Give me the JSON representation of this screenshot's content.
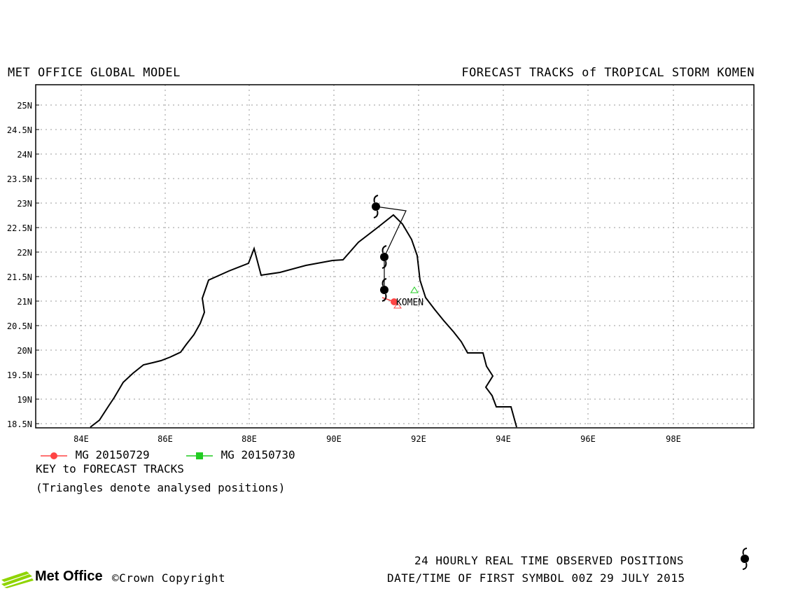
{
  "header": {
    "left_title": "MET OFFICE GLOBAL MODEL",
    "right_title": "FORECAST TRACKS of TROPICAL STORM KOMEN"
  },
  "map": {
    "lon_ticks": [
      "84E",
      "86E",
      "88E",
      "90E",
      "92E",
      "94E",
      "96E",
      "98E"
    ],
    "lat_ticks": [
      "25N",
      "24.5N",
      "24N",
      "23.5N",
      "23N",
      "22.5N",
      "22N",
      "21.5N",
      "21N",
      "20.5N",
      "20N",
      "19.5N",
      "19N",
      "18.5N"
    ],
    "storm_label": "KOMEN",
    "colors": {
      "track_red": "#ff4444",
      "track_green": "#22cc22",
      "observed": "#000000",
      "grid": "#999999"
    }
  },
  "legend": {
    "items": [
      {
        "label": "MG 20150729",
        "color": "#ff4444",
        "marker": "circle"
      },
      {
        "label": "MG 20150730",
        "color": "#22cc22",
        "marker": "square"
      }
    ],
    "key_title": "KEY to FORECAST TRACKS",
    "key_note": "(Triangles denote analysed positions)"
  },
  "footer": {
    "logo": "Met Office",
    "copyright": "©Crown Copyright",
    "observed_note": "24 HOURLY REAL TIME OBSERVED POSITIONS",
    "first_symbol": "DATE/TIME OF FIRST SYMBOL 00Z 29 JULY 2015"
  }
}
